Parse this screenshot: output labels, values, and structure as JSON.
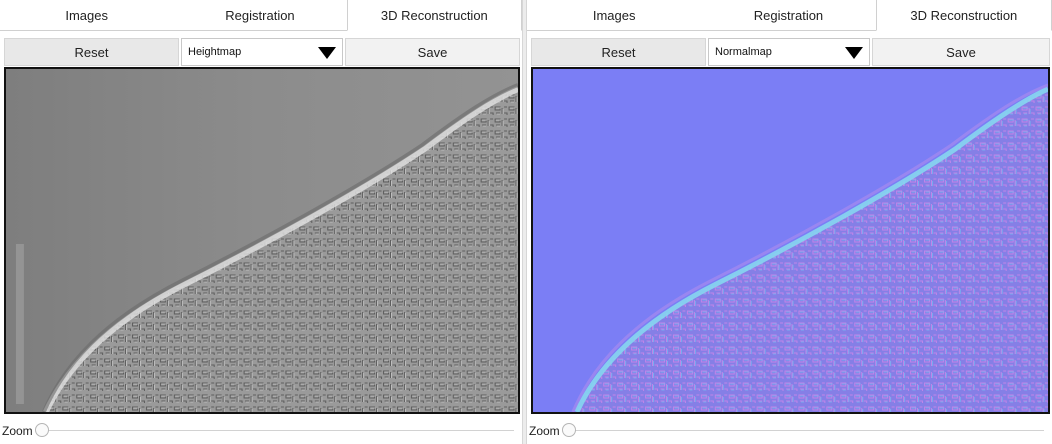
{
  "tabs": [
    "Images",
    "Registration",
    "3D Reconstruction"
  ],
  "active_tab": "3D Reconstruction",
  "panels": [
    {
      "reset_label": "Reset",
      "map_select": "Heightmap",
      "save_label": "Save",
      "zoom_label": "Zoom",
      "zoom_level": 0
    },
    {
      "reset_label": "Reset",
      "map_select": "Normalmap",
      "save_label": "Save",
      "zoom_label": "Zoom",
      "zoom_level": 0
    }
  ],
  "colors": {
    "heightmap_flat": "#8a8a8a",
    "heightmap_stone": "#9c9c9c",
    "normalmap_flat": "#7b7ef5",
    "normalmap_stone": "#8a7ee0",
    "normalmap_edge": "#86d6f0"
  }
}
